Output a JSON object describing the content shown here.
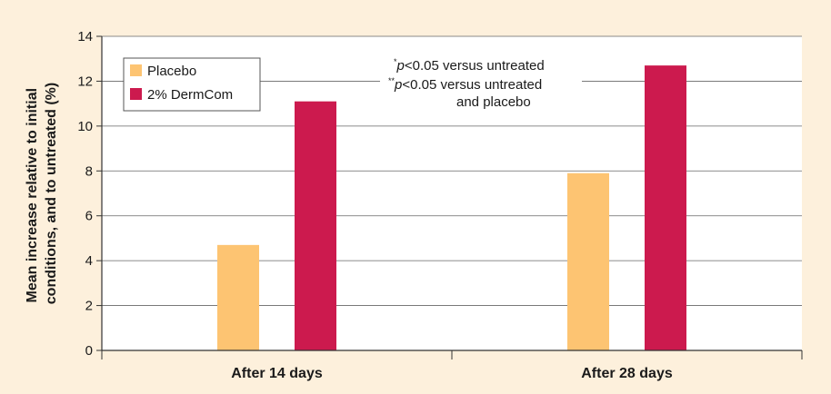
{
  "chart_data": {
    "type": "bar",
    "categories": [
      "After 14 days",
      "After 28 days"
    ],
    "series": [
      {
        "name": "Placebo",
        "values": [
          4.7,
          7.9
        ],
        "color": "#fdc472"
      },
      {
        "name": "2% DermCom",
        "values": [
          11.1,
          12.7
        ],
        "color": "#cc1a4e"
      }
    ],
    "ylim": [
      0,
      14
    ],
    "yticks": [
      0,
      2,
      4,
      6,
      8,
      10,
      12,
      14
    ],
    "ylabel_line1": "Mean increase relative to initial",
    "ylabel_line2": "conditions, and to untreated (%)",
    "xlabel": "",
    "title": "",
    "grid": true,
    "legend_position": "top-left",
    "annotations": {
      "line1_sup": "*",
      "line1_p": "p",
      "line1_rest": "<0.05 versus untreated",
      "line2_sup": "**",
      "line2_p": "p",
      "line2_rest": "<0.05 versus untreated",
      "line3": "and placebo"
    }
  }
}
